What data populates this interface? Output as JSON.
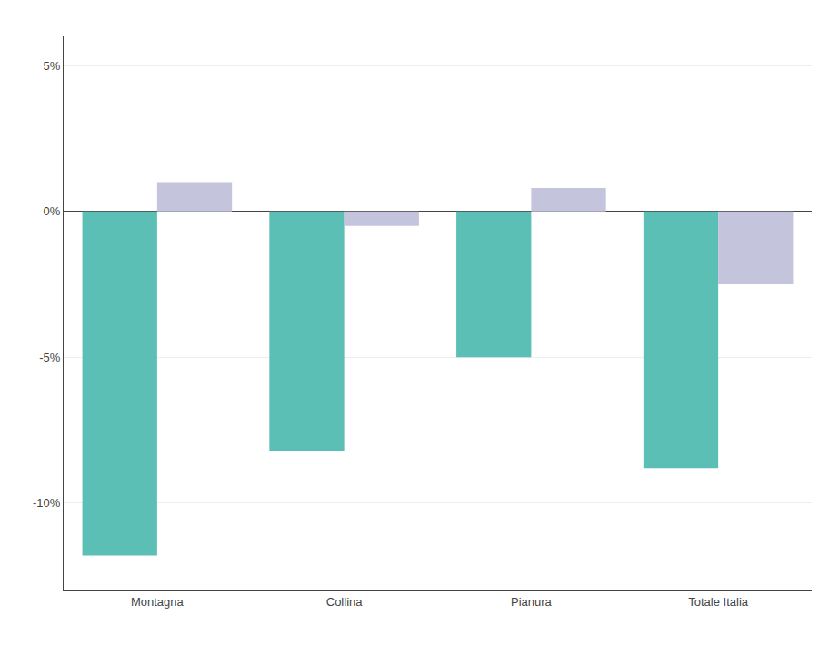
{
  "chart_data": {
    "type": "bar",
    "categories": [
      "Montagna",
      "Collina",
      "Pianura",
      "Totale Italia"
    ],
    "series": [
      {
        "color": "#5CBFB5",
        "values": [
          -11.8,
          -8.2,
          -5.0,
          -8.8
        ]
      },
      {
        "color": "#C4C4DC",
        "values": [
          1.0,
          -0.5,
          0.8,
          -2.5
        ]
      }
    ],
    "ylim": [
      -13.0,
      6.0
    ],
    "yticks": [
      {
        "value": 5,
        "label": "5%"
      },
      {
        "value": 0,
        "label": "0%"
      },
      {
        "value": -5,
        "label": "-5%"
      },
      {
        "value": -10,
        "label": "-10%"
      }
    ],
    "grid": true
  }
}
